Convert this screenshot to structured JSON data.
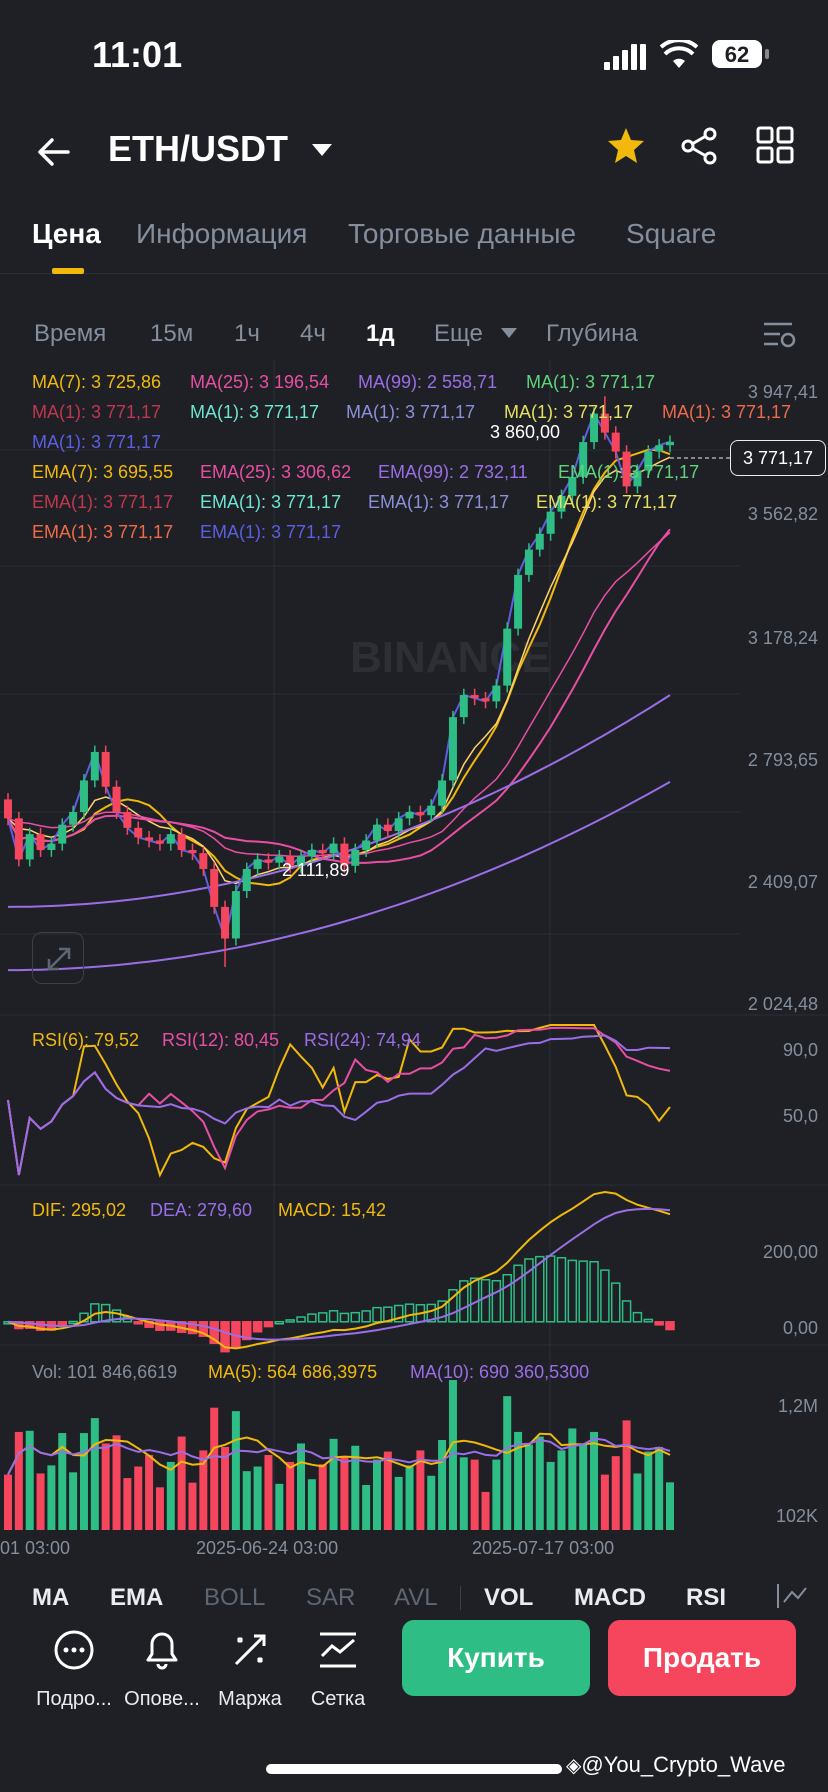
{
  "status": {
    "time": "11:01",
    "battery": "62"
  },
  "header": {
    "pair": "ETH/USDT",
    "colors": {
      "star": "#f0b90b",
      "accent": "#f0b90b",
      "up": "#2ebd85",
      "down": "#f6465d"
    }
  },
  "tabs": [
    "Цена",
    "Информация",
    "Торговые данные",
    "Square"
  ],
  "intervals": [
    "Время",
    "15м",
    "1ч",
    "4ч",
    "1д",
    "Еще",
    "Глубина"
  ],
  "legend": {
    "row1": [
      "MA(7): 3 725,86",
      "MA(25): 3 196,54",
      "MA(99): 2 558,71",
      "MA(1): 3 771,17"
    ],
    "row2": [
      "MA(1): 3 771,17",
      "MA(1): 3 771,17",
      "MA(1): 3 771,17",
      "MA(1): 3 771,17",
      "MA(1): 3 771,17"
    ],
    "row3": [
      "MA(1): 3 771,17"
    ],
    "row4": [
      "EMA(7): 3 695,55",
      "EMA(25): 3 306,62",
      "EMA(99): 2 732,11",
      "EMA(1): 3 771,17"
    ],
    "row5": [
      "EMA(1): 3 771,17",
      "EMA(1): 3 771,17",
      "EMA(1): 3 771,17",
      "EMA(1): 3 771,17"
    ],
    "row6": [
      "EMA(1): 3 771,17",
      "EMA(1): 3 771,17"
    ]
  },
  "price_axis": [
    "3 947,41",
    "3 562,82",
    "3 178,24",
    "2 793,65",
    "2 409,07",
    "2 024,48"
  ],
  "current_price": "3 771,17",
  "high_label": "3 860,00",
  "low_label": "2 111,89",
  "watermark": "BINANCE",
  "rsi": {
    "labels": [
      "RSI(6): 79,52",
      "RSI(12): 80,45",
      "RSI(24): 74,94"
    ],
    "axis": [
      "90,0",
      "50,0"
    ]
  },
  "macd": {
    "labels": [
      "DIF: 295,02",
      "DEA: 279,60",
      "MACD: 15,42"
    ],
    "axis": [
      "200,00",
      "0,00"
    ]
  },
  "vol": {
    "labels": [
      "Vol: 101 846,6619",
      "MA(5): 564 686,3975",
      "MA(10): 690 360,5300"
    ],
    "axis": [
      "1,2M",
      "102K"
    ]
  },
  "dates": [
    "01 03:00",
    "2025-06-24 03:00",
    "2025-07-17 03:00"
  ],
  "bottom_tabs": [
    "MA",
    "EMA",
    "BOLL",
    "SAR",
    "AVL",
    "VOL",
    "MACD",
    "RSI"
  ],
  "actions": [
    "Подро...",
    "Опове...",
    "Маржа",
    "Сетка"
  ],
  "buy": "Купить",
  "sell": "Продать",
  "credit": "@You_Crypto_Wave",
  "chart_data": {
    "type": "candlestick",
    "opens": [
      2640,
      2580,
      2450,
      2530,
      2480,
      2500,
      2560,
      2600,
      2700,
      2790,
      2680,
      2600,
      2550,
      2520,
      2510,
      2500,
      2530,
      2480,
      2470,
      2420,
      2300,
      2200,
      2350,
      2420,
      2450,
      2440,
      2460,
      2430,
      2460,
      2480,
      2470,
      2500,
      2430,
      2480,
      2510,
      2560,
      2540,
      2580,
      2600,
      2590,
      2620,
      2700,
      2900,
      2970,
      2960,
      2950,
      3000,
      3180,
      3350,
      3430,
      3480,
      3550,
      3600,
      3660,
      3770,
      3860,
      3800,
      3740,
      3630,
      3680,
      3740,
      3760
    ],
    "closes": [
      2580,
      2450,
      2530,
      2480,
      2500,
      2560,
      2600,
      2700,
      2790,
      2680,
      2600,
      2550,
      2520,
      2510,
      2500,
      2530,
      2480,
      2470,
      2420,
      2300,
      2200,
      2350,
      2420,
      2450,
      2440,
      2460,
      2430,
      2460,
      2480,
      2470,
      2500,
      2430,
      2480,
      2510,
      2560,
      2540,
      2580,
      2600,
      2590,
      2620,
      2700,
      2900,
      2970,
      2960,
      2950,
      3000,
      3180,
      3350,
      3430,
      3480,
      3550,
      3600,
      3660,
      3770,
      3860,
      3800,
      3740,
      3630,
      3680,
      3740,
      3760,
      3771
    ],
    "price_range": [
      2024.48,
      3947.41
    ],
    "rsi_range": [
      0,
      100
    ],
    "macd_range": [
      -40,
      330
    ],
    "vol_range": [
      0,
      1300
    ]
  }
}
